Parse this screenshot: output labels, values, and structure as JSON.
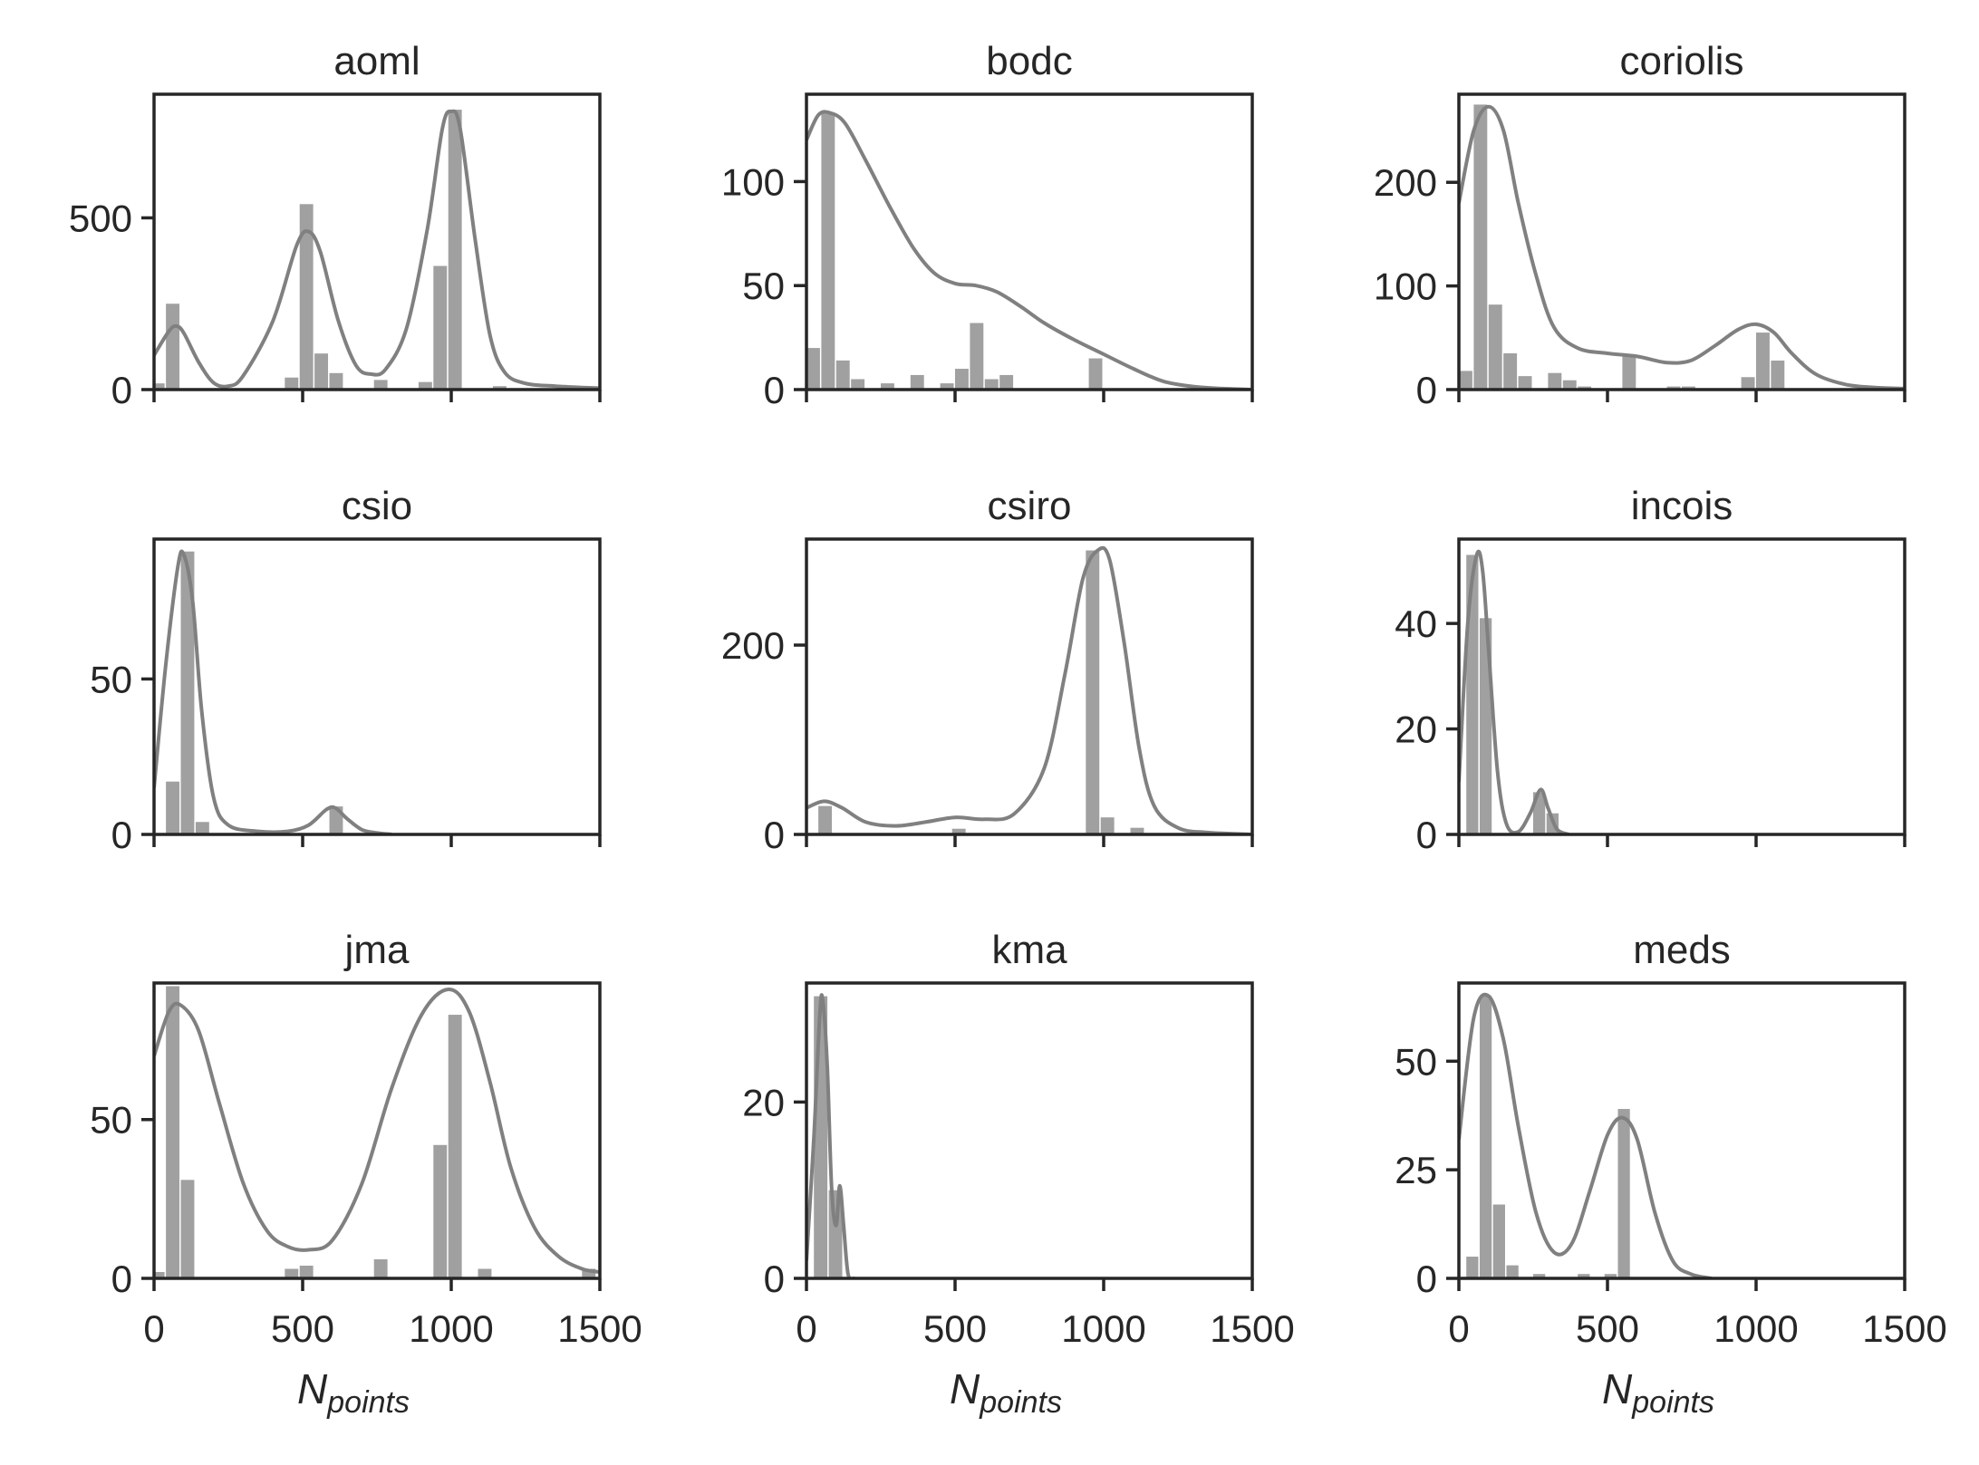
{
  "figure": {
    "xlabel_main": "N",
    "xlabel_sub": "points",
    "colors": {
      "bar": "#a0a0a0",
      "kde": "#808080",
      "axis": "#262626"
    }
  },
  "chart_data": [
    {
      "type": "bar",
      "title": "aoml",
      "xlim": [
        0,
        1500
      ],
      "ylim": [
        0,
        860
      ],
      "yticks": [
        0,
        500
      ],
      "bins": [
        [
          0,
          40,
          18
        ],
        [
          40,
          90,
          250
        ],
        [
          440,
          490,
          35
        ],
        [
          490,
          540,
          540
        ],
        [
          540,
          590,
          105
        ],
        [
          590,
          640,
          48
        ],
        [
          740,
          790,
          28
        ],
        [
          890,
          940,
          22
        ],
        [
          940,
          990,
          360
        ],
        [
          990,
          1040,
          815
        ],
        [
          1140,
          1190,
          10
        ]
      ],
      "kde": [
        [
          0,
          100
        ],
        [
          50,
          170
        ],
        [
          75,
          185
        ],
        [
          100,
          165
        ],
        [
          150,
          80
        ],
        [
          200,
          20
        ],
        [
          250,
          10
        ],
        [
          300,
          40
        ],
        [
          400,
          200
        ],
        [
          480,
          420
        ],
        [
          520,
          460
        ],
        [
          560,
          400
        ],
        [
          620,
          200
        ],
        [
          680,
          70
        ],
        [
          730,
          45
        ],
        [
          780,
          60
        ],
        [
          850,
          180
        ],
        [
          920,
          470
        ],
        [
          970,
          760
        ],
        [
          1000,
          810
        ],
        [
          1030,
          760
        ],
        [
          1080,
          440
        ],
        [
          1130,
          160
        ],
        [
          1180,
          50
        ],
        [
          1250,
          18
        ],
        [
          1350,
          10
        ],
        [
          1500,
          4
        ]
      ]
    },
    {
      "type": "bar",
      "title": "bodc",
      "xlim": [
        0,
        1500
      ],
      "ylim": [
        0,
        142
      ],
      "yticks": [
        0,
        50,
        100
      ],
      "bins": [
        [
          0,
          50,
          20
        ],
        [
          50,
          100,
          133
        ],
        [
          100,
          150,
          14
        ],
        [
          150,
          200,
          5
        ],
        [
          250,
          300,
          3
        ],
        [
          350,
          400,
          7
        ],
        [
          450,
          500,
          3
        ],
        [
          500,
          550,
          10
        ],
        [
          550,
          600,
          32
        ],
        [
          600,
          650,
          5
        ],
        [
          650,
          700,
          7
        ],
        [
          950,
          1000,
          15
        ]
      ],
      "kde": [
        [
          0,
          120
        ],
        [
          40,
          132
        ],
        [
          80,
          133
        ],
        [
          130,
          128
        ],
        [
          200,
          110
        ],
        [
          280,
          88
        ],
        [
          360,
          68
        ],
        [
          430,
          56
        ],
        [
          500,
          51
        ],
        [
          570,
          50
        ],
        [
          640,
          47
        ],
        [
          720,
          40
        ],
        [
          800,
          32
        ],
        [
          900,
          24
        ],
        [
          1000,
          17
        ],
        [
          1100,
          10
        ],
        [
          1200,
          4
        ],
        [
          1300,
          1.5
        ],
        [
          1400,
          0.5
        ],
        [
          1500,
          0
        ]
      ]
    },
    {
      "type": "bar",
      "title": "coriolis",
      "xlim": [
        0,
        1500
      ],
      "ylim": [
        0,
        285
      ],
      "yticks": [
        0,
        100,
        200
      ],
      "bins": [
        [
          0,
          50,
          18
        ],
        [
          50,
          100,
          275
        ],
        [
          100,
          150,
          82
        ],
        [
          150,
          200,
          35
        ],
        [
          200,
          250,
          13
        ],
        [
          300,
          350,
          16
        ],
        [
          350,
          400,
          9
        ],
        [
          400,
          450,
          3
        ],
        [
          550,
          600,
          32
        ],
        [
          700,
          750,
          3
        ],
        [
          750,
          800,
          3
        ],
        [
          950,
          1000,
          12
        ],
        [
          1000,
          1050,
          55
        ],
        [
          1050,
          1100,
          28
        ]
      ],
      "kde": [
        [
          0,
          180
        ],
        [
          50,
          250
        ],
        [
          100,
          273
        ],
        [
          150,
          250
        ],
        [
          200,
          180
        ],
        [
          260,
          110
        ],
        [
          320,
          60
        ],
        [
          400,
          40
        ],
        [
          500,
          35
        ],
        [
          600,
          32
        ],
        [
          700,
          26
        ],
        [
          780,
          28
        ],
        [
          860,
          42
        ],
        [
          940,
          58
        ],
        [
          1000,
          63
        ],
        [
          1060,
          55
        ],
        [
          1120,
          35
        ],
        [
          1200,
          15
        ],
        [
          1300,
          5
        ],
        [
          1400,
          2
        ],
        [
          1500,
          1
        ]
      ]
    },
    {
      "type": "bar",
      "title": "csio",
      "xlim": [
        0,
        1500
      ],
      "ylim": [
        0,
        95
      ],
      "yticks": [
        0,
        50
      ],
      "bins": [
        [
          40,
          90,
          17
        ],
        [
          90,
          140,
          91
        ],
        [
          140,
          190,
          4
        ],
        [
          590,
          640,
          9
        ]
      ],
      "kde": [
        [
          0,
          15
        ],
        [
          40,
          55
        ],
        [
          80,
          86
        ],
        [
          100,
          90
        ],
        [
          130,
          75
        ],
        [
          160,
          40
        ],
        [
          200,
          12
        ],
        [
          250,
          3
        ],
        [
          350,
          1
        ],
        [
          450,
          1
        ],
        [
          520,
          3
        ],
        [
          580,
          8
        ],
        [
          610,
          8.5
        ],
        [
          650,
          5
        ],
        [
          700,
          1.5
        ],
        [
          750,
          0.5
        ],
        [
          800,
          0
        ]
      ]
    },
    {
      "type": "bar",
      "title": "csiro",
      "xlim": [
        0,
        1500
      ],
      "ylim": [
        0,
        312
      ],
      "yticks": [
        0,
        200
      ],
      "bins": [
        [
          40,
          90,
          30
        ],
        [
          490,
          540,
          6
        ],
        [
          940,
          990,
          300
        ],
        [
          990,
          1040,
          18
        ],
        [
          1090,
          1140,
          7
        ]
      ],
      "kde": [
        [
          0,
          28
        ],
        [
          60,
          35
        ],
        [
          120,
          28
        ],
        [
          200,
          13
        ],
        [
          300,
          9
        ],
        [
          400,
          13
        ],
        [
          500,
          18
        ],
        [
          600,
          16
        ],
        [
          700,
          22
        ],
        [
          800,
          70
        ],
        [
          870,
          170
        ],
        [
          930,
          270
        ],
        [
          980,
          300
        ],
        [
          1020,
          290
        ],
        [
          1070,
          200
        ],
        [
          1120,
          90
        ],
        [
          1170,
          30
        ],
        [
          1250,
          7
        ],
        [
          1350,
          2
        ],
        [
          1500,
          0
        ]
      ]
    },
    {
      "type": "bar",
      "title": "incois",
      "xlim": [
        0,
        1500
      ],
      "ylim": [
        0,
        56
      ],
      "yticks": [
        0,
        20,
        40
      ],
      "bins": [
        [
          25,
          70,
          53
        ],
        [
          70,
          115,
          41
        ],
        [
          250,
          295,
          8
        ],
        [
          295,
          340,
          4
        ]
      ],
      "kde": [
        [
          0,
          10
        ],
        [
          30,
          40
        ],
        [
          60,
          53
        ],
        [
          80,
          50
        ],
        [
          100,
          35
        ],
        [
          130,
          12
        ],
        [
          160,
          2
        ],
        [
          200,
          0.5
        ],
        [
          240,
          4
        ],
        [
          275,
          8.5
        ],
        [
          300,
          5
        ],
        [
          330,
          1
        ],
        [
          370,
          0
        ]
      ]
    },
    {
      "type": "bar",
      "title": "jma",
      "xlim": [
        0,
        1500
      ],
      "ylim": [
        0,
        93
      ],
      "yticks": [
        0,
        50
      ],
      "bins": [
        [
          0,
          40,
          2
        ],
        [
          40,
          90,
          92
        ],
        [
          90,
          140,
          31
        ],
        [
          440,
          490,
          3
        ],
        [
          490,
          540,
          4
        ],
        [
          740,
          790,
          6
        ],
        [
          940,
          990,
          42
        ],
        [
          990,
          1040,
          83
        ],
        [
          1090,
          1140,
          3
        ],
        [
          1440,
          1490,
          3
        ]
      ],
      "kde": [
        [
          0,
          70
        ],
        [
          50,
          84
        ],
        [
          90,
          86
        ],
        [
          150,
          78
        ],
        [
          220,
          55
        ],
        [
          300,
          30
        ],
        [
          380,
          15
        ],
        [
          450,
          10
        ],
        [
          520,
          9
        ],
        [
          600,
          12
        ],
        [
          700,
          30
        ],
        [
          800,
          60
        ],
        [
          900,
          83
        ],
        [
          990,
          91
        ],
        [
          1060,
          84
        ],
        [
          1130,
          62
        ],
        [
          1200,
          35
        ],
        [
          1280,
          16
        ],
        [
          1360,
          7
        ],
        [
          1440,
          3
        ],
        [
          1500,
          2
        ]
      ]
    },
    {
      "type": "bar",
      "title": "kma",
      "xlim": [
        0,
        1500
      ],
      "ylim": [
        0,
        33.5
      ],
      "yticks": [
        0,
        20
      ],
      "bins": [
        [
          25,
          75,
          32
        ],
        [
          75,
          125,
          10
        ]
      ],
      "kde": [
        [
          0,
          2
        ],
        [
          25,
          16
        ],
        [
          45,
          30
        ],
        [
          55,
          31.5
        ],
        [
          70,
          24
        ],
        [
          85,
          10
        ],
        [
          100,
          6
        ],
        [
          112,
          10.5
        ],
        [
          125,
          6
        ],
        [
          140,
          0.5
        ],
        [
          160,
          0
        ]
      ]
    },
    {
      "type": "bar",
      "title": "meds",
      "xlim": [
        0,
        1500
      ],
      "ylim": [
        0,
        68
      ],
      "yticks": [
        0,
        25,
        50
      ],
      "bins": [
        [
          25,
          70,
          5
        ],
        [
          70,
          115,
          65
        ],
        [
          115,
          160,
          17
        ],
        [
          160,
          205,
          3
        ],
        [
          250,
          295,
          1
        ],
        [
          400,
          445,
          1
        ],
        [
          490,
          535,
          1
        ],
        [
          535,
          580,
          39
        ]
      ],
      "kde": [
        [
          0,
          32
        ],
        [
          50,
          60
        ],
        [
          100,
          65
        ],
        [
          150,
          55
        ],
        [
          200,
          35
        ],
        [
          260,
          15
        ],
        [
          320,
          6
        ],
        [
          380,
          8
        ],
        [
          440,
          20
        ],
        [
          500,
          33
        ],
        [
          550,
          37
        ],
        [
          600,
          32
        ],
        [
          660,
          15
        ],
        [
          720,
          4
        ],
        [
          780,
          1
        ],
        [
          850,
          0
        ]
      ]
    }
  ]
}
